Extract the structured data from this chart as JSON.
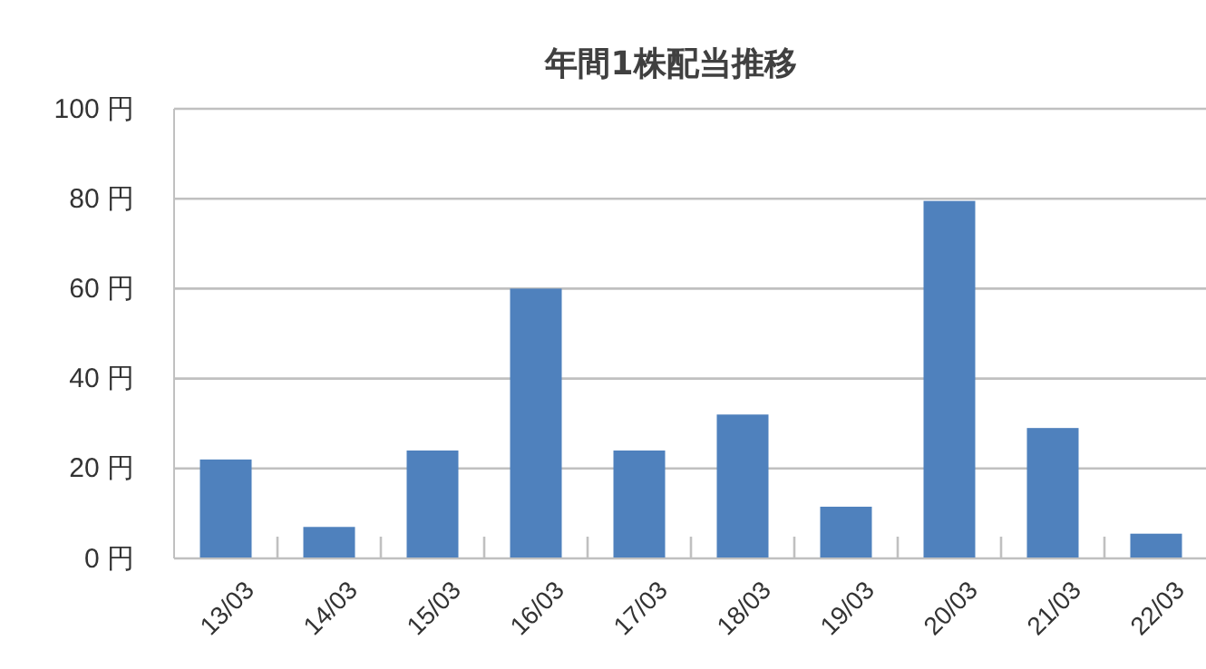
{
  "chart_data": {
    "type": "bar",
    "title": "年間1株配当推移",
    "categories": [
      "13/03",
      "14/03",
      "15/03",
      "16/03",
      "17/03",
      "18/03",
      "19/03",
      "20/03",
      "21/03",
      "22/03"
    ],
    "values": [
      22,
      7,
      24,
      60,
      24,
      32,
      11.5,
      79.5,
      29,
      5.5
    ],
    "color": "#4f81bd",
    "ylim": [
      0,
      100
    ],
    "yticks": [
      {
        "value": 0,
        "label": "0 円"
      },
      {
        "value": 20,
        "label": "20 円"
      },
      {
        "value": 40,
        "label": "40 円"
      },
      {
        "value": 60,
        "label": "60 円"
      },
      {
        "value": 80,
        "label": "80 円"
      },
      {
        "value": 100,
        "label": "100 円"
      }
    ],
    "grid": "y"
  }
}
